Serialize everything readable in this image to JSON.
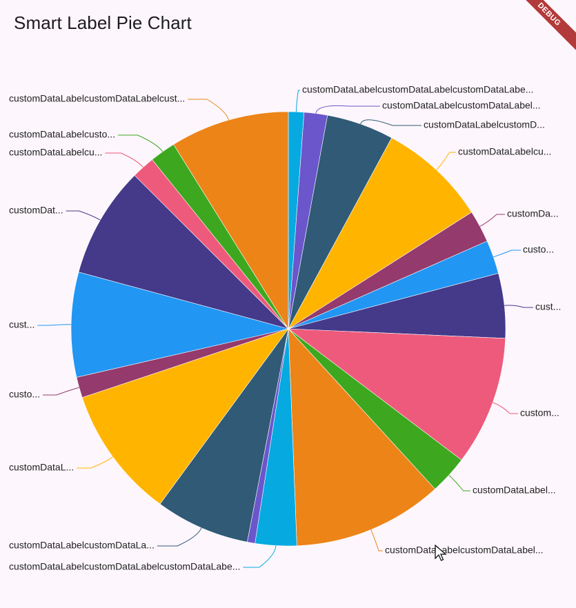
{
  "app_bar": {
    "title": "Smart Label Pie Chart",
    "debug_label": "DEBUG"
  },
  "chart_data": {
    "type": "pie",
    "title": "",
    "legend": "none",
    "slices": [
      {
        "label": "customDataLabelcustomDataLabelcustomDataLabe...",
        "value": 1.2,
        "color": "#06a9e0"
      },
      {
        "label": "customDataLabelcustomDataLabel...",
        "value": 1.8,
        "color": "#6b56cc"
      },
      {
        "label": "customDataLabelcustomD...",
        "value": 5.2,
        "color": "#305a76"
      },
      {
        "label": "customDataLabelcu...",
        "value": 8.4,
        "color": "#ffb400"
      },
      {
        "label": "customDa...",
        "value": 2.5,
        "color": "#953a6c"
      },
      {
        "label": "custo...",
        "value": 2.6,
        "color": "#2196f3"
      },
      {
        "label": "cust...",
        "value": 5.0,
        "color": "#45398a"
      },
      {
        "label": "custom...",
        "value": 10.0,
        "color": "#ee5a7b"
      },
      {
        "label": "customDataLabel...",
        "value": 3.0,
        "color": "#3da81f"
      },
      {
        "label": "customDataLabelcustomDataLabel...",
        "value": 11.6,
        "color": "#ec8418"
      },
      {
        "label": "customDataLabelcustomDataLabelcustomDataLabe...",
        "value": 3.2,
        "color": "#06a9e0"
      },
      {
        "label": "",
        "value": 0.6,
        "color": "#6b56cc"
      },
      {
        "label": "customDataLabelcustomDataLa...",
        "value": 7.3,
        "color": "#305a76"
      },
      {
        "label": "customDataL...",
        "value": 10.2,
        "color": "#ffb400"
      },
      {
        "label": "custo...",
        "value": 1.6,
        "color": "#953a6c"
      },
      {
        "label": "cust...",
        "value": 8.1,
        "color": "#2196f3"
      },
      {
        "label": "customDat...",
        "value": 8.6,
        "color": "#45398a"
      },
      {
        "label": "customDataLabelcu...",
        "value": 1.8,
        "color": "#ee5a7b"
      },
      {
        "label": "customDataLabelcusto...",
        "value": 2.0,
        "color": "#3da81f"
      },
      {
        "label": "customDataLabelcustomDataLabelcust...",
        "value": 9.2,
        "color": "#ec8418"
      }
    ]
  }
}
